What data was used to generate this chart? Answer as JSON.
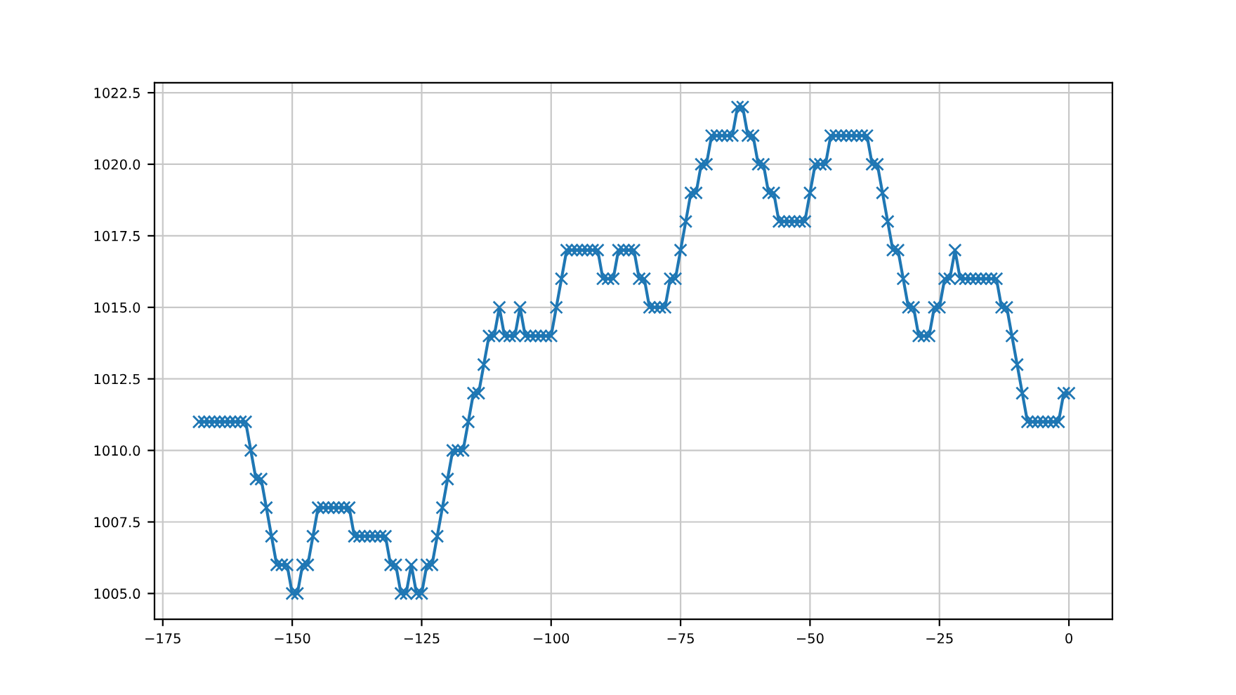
{
  "chart_data": {
    "type": "line",
    "x": [
      -168,
      -167,
      -166,
      -165,
      -164,
      -163,
      -162,
      -161,
      -160,
      -159,
      -158,
      -157,
      -156,
      -155,
      -154,
      -153,
      -152,
      -151,
      -150,
      -149,
      -148,
      -147,
      -146,
      -145,
      -144,
      -143,
      -142,
      -141,
      -140,
      -139,
      -138,
      -137,
      -136,
      -135,
      -134,
      -133,
      -132,
      -131,
      -130,
      -129,
      -128,
      -127,
      -126,
      -125,
      -124,
      -123,
      -122,
      -121,
      -120,
      -119,
      -118,
      -117,
      -116,
      -115,
      -114,
      -113,
      -112,
      -111,
      -110,
      -109,
      -108,
      -107,
      -106,
      -105,
      -104,
      -103,
      -102,
      -101,
      -100,
      -99,
      -98,
      -97,
      -96,
      -95,
      -94,
      -93,
      -92,
      -91,
      -90,
      -89,
      -88,
      -87,
      -86,
      -85,
      -84,
      -83,
      -82,
      -81,
      -80,
      -79,
      -78,
      -77,
      -76,
      -75,
      -74,
      -73,
      -72,
      -71,
      -70,
      -69,
      -68,
      -67,
      -66,
      -65,
      -64,
      -63,
      -62,
      -61,
      -60,
      -59,
      -58,
      -57,
      -56,
      -55,
      -54,
      -53,
      -52,
      -51,
      -50,
      -49,
      -48,
      -47,
      -46,
      -45,
      -44,
      -43,
      -42,
      -41,
      -40,
      -39,
      -38,
      -37,
      -36,
      -35,
      -34,
      -33,
      -32,
      -31,
      -30,
      -29,
      -28,
      -27,
      -26,
      -25,
      -24,
      -23,
      -22,
      -21,
      -20,
      -19,
      -18,
      -17,
      -16,
      -15,
      -14,
      -13,
      -12,
      -11,
      -10,
      -9,
      -8,
      -7,
      -6,
      -5,
      -4,
      -3,
      -2,
      -1,
      0
    ],
    "series": [
      {
        "color": "#1f77b4",
        "values": [
          1011,
          1011,
          1011,
          1011,
          1011,
          1011,
          1011,
          1011,
          1011,
          1011,
          1010,
          1009,
          1009,
          1008,
          1007,
          1006,
          1006,
          1006,
          1005,
          1005,
          1006,
          1006,
          1007,
          1008,
          1008,
          1008,
          1008,
          1008,
          1008,
          1008,
          1007,
          1007,
          1007,
          1007,
          1007,
          1007,
          1007,
          1006,
          1006,
          1005,
          1005,
          1006,
          1005,
          1005,
          1006,
          1006,
          1007,
          1008,
          1009,
          1010,
          1010,
          1010,
          1011,
          1012,
          1012,
          1013,
          1014,
          1014,
          1015,
          1014,
          1014,
          1014,
          1015,
          1014,
          1014,
          1014,
          1014,
          1014,
          1014,
          1015,
          1016,
          1017,
          1017,
          1017,
          1017,
          1017,
          1017,
          1017,
          1016,
          1016,
          1016,
          1017,
          1017,
          1017,
          1017,
          1016,
          1016,
          1015,
          1015,
          1015,
          1015,
          1016,
          1016,
          1017,
          1018,
          1019,
          1019,
          1020,
          1020,
          1021,
          1021,
          1021,
          1021,
          1021,
          1022,
          1022,
          1021,
          1021,
          1020,
          1020,
          1019,
          1019,
          1018,
          1018,
          1018,
          1018,
          1018,
          1018,
          1019,
          1020,
          1020,
          1020,
          1021,
          1021,
          1021,
          1021,
          1021,
          1021,
          1021,
          1021,
          1020,
          1020,
          1019,
          1018,
          1017,
          1017,
          1016,
          1015,
          1015,
          1014,
          1014,
          1014,
          1015,
          1015,
          1016,
          1016,
          1017,
          1016,
          1016,
          1016,
          1016,
          1016,
          1016,
          1016,
          1016,
          1015,
          1015,
          1014,
          1013,
          1012,
          1011,
          1011,
          1011,
          1011,
          1011,
          1011,
          1011,
          1012,
          1012
        ]
      }
    ],
    "xlim": [
      -176.6,
      8.4
    ],
    "xticks": [
      {
        "value": -175,
        "label": "−175"
      },
      {
        "value": -150,
        "label": "−150"
      },
      {
        "value": -125,
        "label": "−125"
      },
      {
        "value": -100,
        "label": "−100"
      },
      {
        "value": -75,
        "label": "−75"
      },
      {
        "value": -50,
        "label": "−50"
      },
      {
        "value": -25,
        "label": "−25"
      },
      0
    ],
    "ylim": [
      1004.1,
      1022.85
    ],
    "yticks": [
      {
        "value": 1005,
        "label": "1005.0"
      },
      {
        "value": 1007.5,
        "label": "1007.5"
      },
      {
        "value": 1010,
        "label": "1010.0"
      },
      {
        "value": 1012.5,
        "label": "1012.5"
      },
      {
        "value": 1015,
        "label": "1015.0"
      },
      {
        "value": 1017.5,
        "label": "1017.5"
      },
      {
        "value": 1020,
        "label": "1020.0"
      },
      {
        "value": 1022.5,
        "label": "1022.5"
      }
    ],
    "grid": true,
    "marker": "cross",
    "line_style": "solid"
  }
}
